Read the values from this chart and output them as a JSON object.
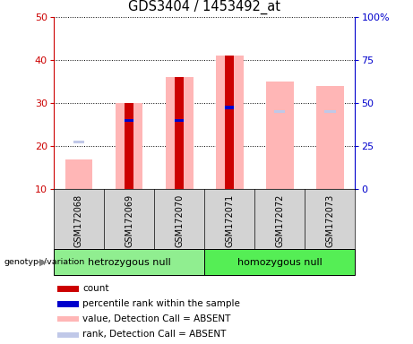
{
  "title": "GDS3404 / 1453492_at",
  "samples": [
    "GSM172068",
    "GSM172069",
    "GSM172070",
    "GSM172071",
    "GSM172072",
    "GSM172073"
  ],
  "group_het": {
    "name": "hetrozygous null",
    "color": "#90ee90",
    "indices": [
      0,
      1,
      2
    ]
  },
  "group_hom": {
    "name": "homozygous null",
    "color": "#55ee55",
    "indices": [
      3,
      4,
      5
    ]
  },
  "count_values": [
    null,
    30,
    36,
    41,
    null,
    null
  ],
  "percentile_values": [
    null,
    26,
    26,
    29,
    null,
    null
  ],
  "absent_value_values": [
    17,
    30,
    36,
    41,
    35,
    34
  ],
  "absent_rank_values": [
    21,
    26,
    26,
    29,
    28,
    28
  ],
  "ylim_left": [
    10,
    50
  ],
  "ylim_right": [
    0,
    100
  ],
  "yticks_left": [
    10,
    20,
    30,
    40,
    50
  ],
  "yticks_right": [
    0,
    25,
    50,
    75,
    100
  ],
  "ytick_right_labels": [
    "0",
    "25",
    "50",
    "75",
    "100%"
  ],
  "count_color": "#cc0000",
  "percentile_color": "#0000cc",
  "absent_value_color": "#ffb6b6",
  "absent_rank_color": "#c0c8e8",
  "left_axis_color": "#cc0000",
  "right_axis_color": "#0000cc",
  "plot_bg": "white",
  "label_bg": "#d3d3d3",
  "legend_items": [
    {
      "color": "#cc0000",
      "label": "count"
    },
    {
      "color": "#0000cc",
      "label": "percentile rank within the sample"
    },
    {
      "color": "#ffb6b6",
      "label": "value, Detection Call = ABSENT"
    },
    {
      "color": "#c0c8e8",
      "label": "rank, Detection Call = ABSENT"
    }
  ]
}
